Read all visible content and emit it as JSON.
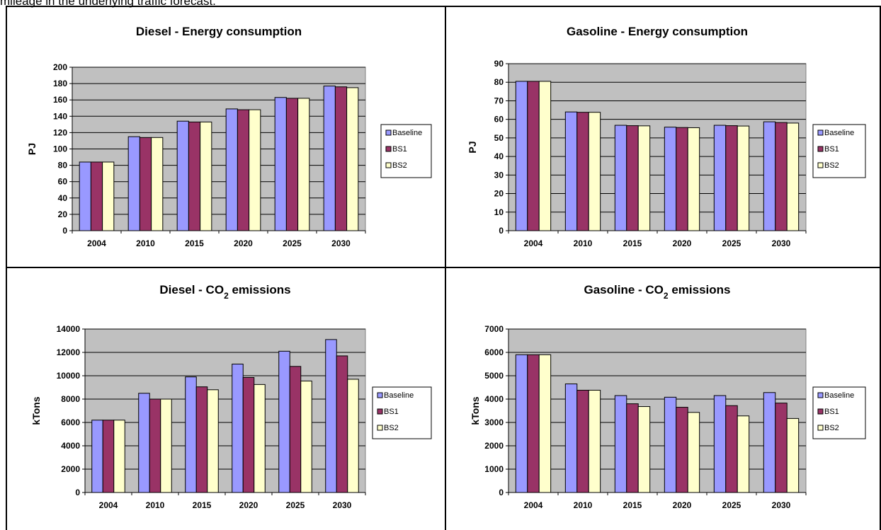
{
  "caption_fragment": "mileage in the underlying traffic forecast.",
  "colors": {
    "plot_bg": "#c0c0c0",
    "Baseline": "#9999ff",
    "BS1": "#993366",
    "BS2": "#ffffcc",
    "border": "#000000"
  },
  "chart_data": [
    {
      "type": "bar",
      "title": "Diesel - Energy consumption",
      "title_sub": "",
      "title_suffix": "",
      "ylabel": "PJ",
      "categories": [
        "2004",
        "2010",
        "2015",
        "2020",
        "2025",
        "2030"
      ],
      "ylim": [
        0,
        200
      ],
      "yticks": [
        0,
        20,
        40,
        60,
        80,
        100,
        120,
        140,
        160,
        180,
        200
      ],
      "grid": true,
      "legend": "right",
      "series": [
        {
          "name": "Baseline",
          "values": [
            84,
            115,
            134,
            149,
            163,
            177
          ]
        },
        {
          "name": "BS1",
          "values": [
            84,
            114,
            133,
            148,
            162,
            176
          ]
        },
        {
          "name": "BS2",
          "values": [
            84,
            114,
            133,
            148,
            162,
            175
          ]
        }
      ]
    },
    {
      "type": "bar",
      "title": "Gasoline - Energy consumption",
      "title_sub": "",
      "title_suffix": "",
      "ylabel": "PJ",
      "categories": [
        "2004",
        "2010",
        "2015",
        "2020",
        "2025",
        "2030"
      ],
      "ylim": [
        0,
        90
      ],
      "yticks": [
        0,
        10,
        20,
        30,
        40,
        50,
        60,
        70,
        80,
        90
      ],
      "grid": true,
      "legend": "right",
      "series": [
        {
          "name": "Baseline",
          "values": [
            80.5,
            64,
            56.8,
            55.8,
            56.8,
            58.7
          ]
        },
        {
          "name": "BS1",
          "values": [
            80.5,
            63.8,
            56.6,
            55.6,
            56.6,
            58.3
          ]
        },
        {
          "name": "BS2",
          "values": [
            80.5,
            63.8,
            56.5,
            55.5,
            56.4,
            58
          ]
        }
      ]
    },
    {
      "type": "bar",
      "title": "Diesel - CO",
      "title_sub": "2",
      "title_suffix": " emissions",
      "ylabel": "kTons",
      "categories": [
        "2004",
        "2010",
        "2015",
        "2020",
        "2025",
        "2030"
      ],
      "ylim": [
        0,
        14000
      ],
      "yticks": [
        0,
        2000,
        4000,
        6000,
        8000,
        10000,
        12000,
        14000
      ],
      "grid": true,
      "legend": "right",
      "series": [
        {
          "name": "Baseline",
          "values": [
            6200,
            8500,
            9900,
            11000,
            12100,
            13100
          ]
        },
        {
          "name": "BS1",
          "values": [
            6200,
            8000,
            9050,
            9850,
            10800,
            11700
          ]
        },
        {
          "name": "BS2",
          "values": [
            6200,
            8000,
            8800,
            9250,
            9550,
            9700
          ]
        }
      ]
    },
    {
      "type": "bar",
      "title": "Gasoline - CO",
      "title_sub": "2",
      "title_suffix": " emissions",
      "ylabel": "kTons",
      "categories": [
        "2004",
        "2010",
        "2015",
        "2020",
        "2025",
        "2030"
      ],
      "ylim": [
        0,
        7000
      ],
      "yticks": [
        0,
        1000,
        2000,
        3000,
        4000,
        5000,
        6000,
        7000
      ],
      "grid": true,
      "legend": "right",
      "series": [
        {
          "name": "Baseline",
          "values": [
            5900,
            4650,
            4150,
            4080,
            4150,
            4280
          ]
        },
        {
          "name": "BS1",
          "values": [
            5900,
            4380,
            3800,
            3650,
            3720,
            3830
          ]
        },
        {
          "name": "BS2",
          "values": [
            5900,
            4380,
            3680,
            3430,
            3280,
            3170
          ]
        }
      ]
    }
  ]
}
